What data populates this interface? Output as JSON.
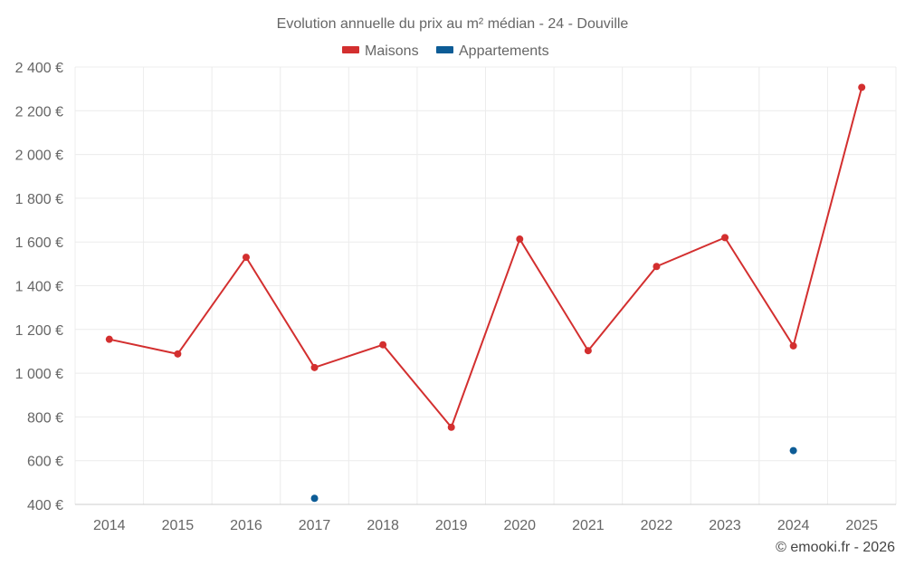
{
  "chart_data": {
    "type": "line",
    "title": "Evolution annuelle du prix au m² médian - 24 - Douville",
    "categories": [
      "2014",
      "2015",
      "2016",
      "2017",
      "2018",
      "2019",
      "2020",
      "2021",
      "2022",
      "2023",
      "2024",
      "2025"
    ],
    "ylim": [
      400,
      2400
    ],
    "yticks": [
      400,
      600,
      800,
      1000,
      1200,
      1400,
      1600,
      1800,
      2000,
      2200,
      2400
    ],
    "ytick_labels": [
      "400 €",
      "600 €",
      "800 €",
      "1 000 €",
      "1 200 €",
      "1 400 €",
      "1 600 €",
      "1 800 €",
      "2 000 €",
      "2 200 €",
      "2 400 €"
    ],
    "grid": true,
    "legend_position": "top-center",
    "series": [
      {
        "name": "Maisons",
        "color": "#d32f2f",
        "values": [
          1155,
          1088,
          1530,
          1026,
          1130,
          753,
          1613,
          1103,
          1488,
          1620,
          1125,
          2307
        ]
      },
      {
        "name": "Appartements",
        "color": "#0d5c96",
        "values": [
          null,
          null,
          null,
          428,
          null,
          null,
          null,
          null,
          null,
          null,
          646,
          null
        ]
      }
    ],
    "credit": "© emooki.fr - 2026"
  }
}
